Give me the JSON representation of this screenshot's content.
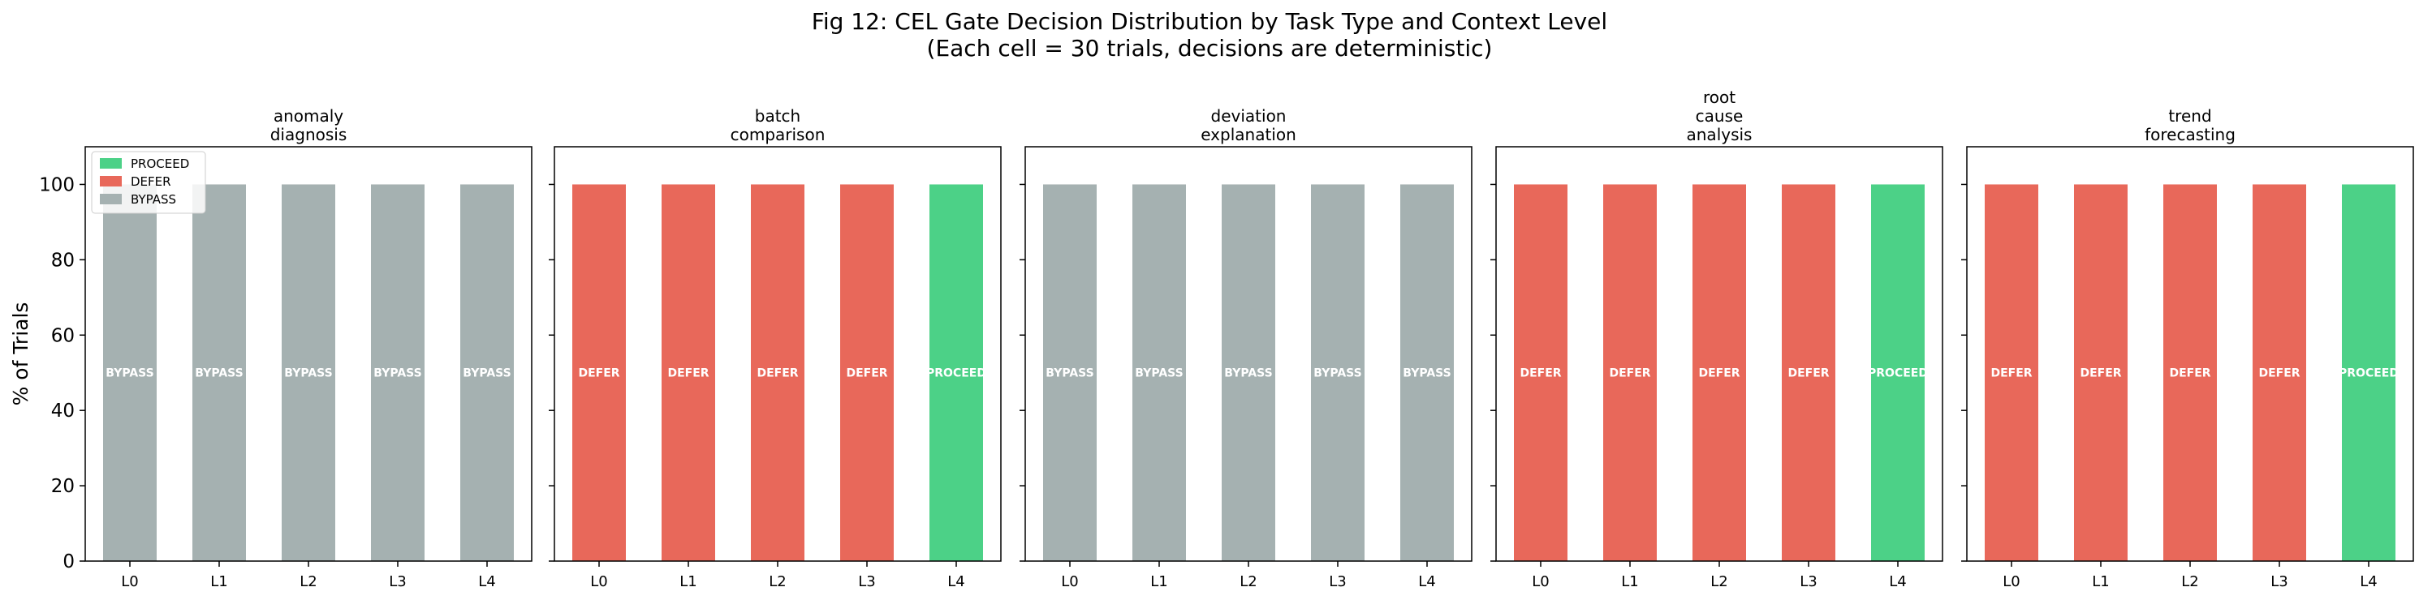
{
  "figure": {
    "title_line1": "Fig 12: CEL Gate Decision Distribution by Task Type and Context Level",
    "title_line2": "(Each cell = 30 trials, decisions are deterministic)"
  },
  "colors": {
    "PROCEED": "#4cd187",
    "DEFER": "#e8685a",
    "BYPASS": "#a5b1b1"
  },
  "chart_data": {
    "type": "bar",
    "stacked": true,
    "ylabel": "% of Trials",
    "ylim": [
      0,
      110
    ],
    "yticks": [
      0,
      20,
      40,
      60,
      80,
      100
    ],
    "categories": [
      "L0",
      "L1",
      "L2",
      "L3",
      "L4"
    ],
    "legend": {
      "placement": "upper-left of first panel",
      "entries": [
        "PROCEED",
        "DEFER",
        "BYPASS"
      ]
    },
    "panels": [
      {
        "title_lines": [
          "anomaly",
          "diagnosis"
        ],
        "decisions": [
          "BYPASS",
          "BYPASS",
          "BYPASS",
          "BYPASS",
          "BYPASS"
        ],
        "values": [
          100,
          100,
          100,
          100,
          100
        ]
      },
      {
        "title_lines": [
          "batch",
          "comparison"
        ],
        "decisions": [
          "DEFER",
          "DEFER",
          "DEFER",
          "DEFER",
          "PROCEED"
        ],
        "values": [
          100,
          100,
          100,
          100,
          100
        ]
      },
      {
        "title_lines": [
          "deviation",
          "explanation"
        ],
        "decisions": [
          "BYPASS",
          "BYPASS",
          "BYPASS",
          "BYPASS",
          "BYPASS"
        ],
        "values": [
          100,
          100,
          100,
          100,
          100
        ]
      },
      {
        "title_lines": [
          "root",
          "cause",
          "analysis"
        ],
        "decisions": [
          "DEFER",
          "DEFER",
          "DEFER",
          "DEFER",
          "PROCEED"
        ],
        "values": [
          100,
          100,
          100,
          100,
          100
        ]
      },
      {
        "title_lines": [
          "trend",
          "forecasting"
        ],
        "decisions": [
          "DEFER",
          "DEFER",
          "DEFER",
          "DEFER",
          "PROCEED"
        ],
        "values": [
          100,
          100,
          100,
          100,
          100
        ]
      }
    ]
  }
}
